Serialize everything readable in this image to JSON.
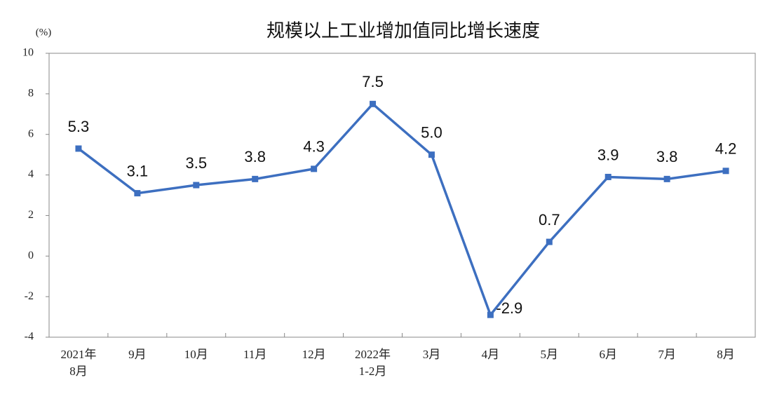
{
  "chart_data": {
    "type": "line",
    "title": "规模以上工业增加值同比增长速度",
    "y_label": "(%)",
    "categories": [
      "2021年\n8月",
      "9月",
      "10月",
      "11月",
      "12月",
      "2022年\n1-2月",
      "3月",
      "4月",
      "5月",
      "6月",
      "7月",
      "8月"
    ],
    "series": [
      {
        "name": "规模以上工业增加值同比增长速度",
        "color": "#3d6fc0",
        "values": [
          5.3,
          3.1,
          3.5,
          3.8,
          4.3,
          7.5,
          5.0,
          -2.9,
          0.7,
          3.9,
          3.8,
          4.2
        ],
        "value_labels": [
          "5.3",
          "3.1",
          "3.5",
          "3.8",
          "4.3",
          "7.5",
          "5.0",
          "-2.9",
          "0.7",
          "3.9",
          "3.8",
          "4.2"
        ]
      }
    ],
    "ylim": [
      -4,
      10
    ],
    "yticks": [
      -4,
      -2,
      0,
      2,
      4,
      6,
      8,
      10
    ],
    "grid": false
  }
}
